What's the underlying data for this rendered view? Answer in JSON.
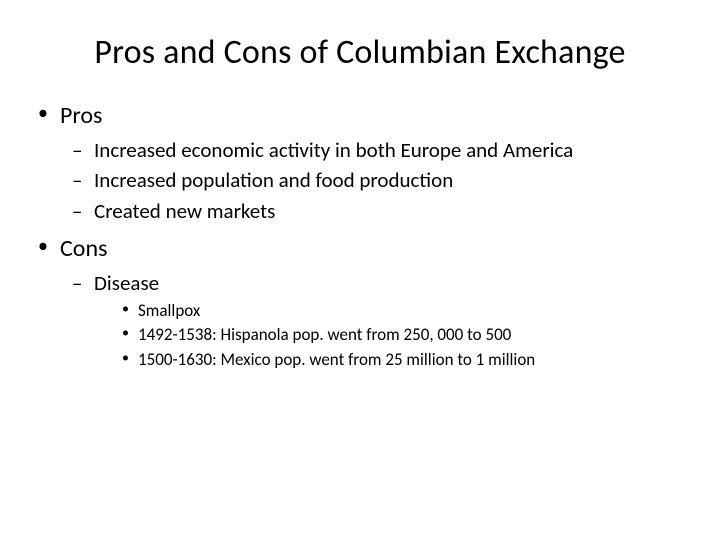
{
  "title": "Pros and Cons of Columbian Exchange",
  "level1": {
    "pros": {
      "label": "Pros",
      "items": [
        "Increased economic activity in both Europe and America",
        "Increased population and food production",
        "Created new markets"
      ]
    },
    "cons": {
      "label": "Cons",
      "items": {
        "disease": {
          "label": "Disease",
          "sub": [
            "Smallpox",
            "1492-1538: Hispanola pop. went from 250, 000 to 500",
            "1500-1630: Mexico pop. went from 25 million to 1 million"
          ]
        }
      }
    }
  },
  "style": {
    "background_color": "#ffffff",
    "text_color": "#000000",
    "font_family": "Calibri",
    "title_fontsize": 34,
    "lvl1_fontsize": 24,
    "lvl2_fontsize": 21,
    "lvl3_fontsize": 17,
    "slide_width": 720,
    "slide_height": 540
  }
}
